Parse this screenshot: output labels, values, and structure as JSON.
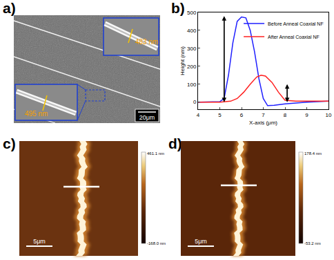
{
  "figure": {
    "a": {
      "label": "a)",
      "inset_top": "483 nm",
      "inset_bottom": "495 nm",
      "scale_bar": "20μm"
    },
    "b": {
      "label": "b)"
    },
    "c": {
      "label": "c)",
      "scale_bar": "5μm",
      "colorbar_max": "461.1 nm",
      "colorbar_min": "-168.0 nm"
    },
    "d": {
      "label": "d)",
      "scale_bar": "5μm",
      "colorbar_max": "178.4 nm",
      "colorbar_min": "-53.2 nm"
    }
  },
  "chart_data": {
    "type": "line",
    "x_label": "X-axis (μm)",
    "y_label": "Height (nm)",
    "xlim": [
      4,
      10
    ],
    "xticks": [
      4,
      5,
      6,
      7,
      8,
      9,
      10
    ],
    "ylim": [
      -40,
      500
    ],
    "yticks": [
      0,
      100,
      200,
      300,
      400,
      500
    ],
    "legend": "upper right",
    "series": [
      {
        "name": "Before Anneal Coaxial NF",
        "color": "#1f1fff",
        "x": [
          4,
          4.5,
          5,
          5.2,
          5.4,
          5.6,
          5.8,
          6.0,
          6.2,
          6.4,
          6.6,
          6.8,
          7.0,
          7.2,
          7.5,
          8,
          9,
          10
        ],
        "values": [
          0,
          0,
          2,
          20,
          150,
          330,
          450,
          475,
          470,
          400,
          280,
          130,
          20,
          -20,
          -18,
          -10,
          0,
          5
        ]
      },
      {
        "name": "After Anneal Coaxial NF",
        "color": "#ff2020",
        "x": [
          4,
          5,
          5.5,
          5.8,
          6.1,
          6.4,
          6.7,
          6.9,
          7.1,
          7.4,
          7.7,
          8.0,
          8.5,
          9,
          10
        ],
        "values": [
          0,
          0,
          5,
          20,
          55,
          100,
          140,
          150,
          145,
          110,
          55,
          10,
          5,
          5,
          5
        ]
      }
    ],
    "arrows": [
      {
        "x": 5.2,
        "y_from": 0,
        "y_to": 480
      },
      {
        "x": 8.1,
        "y_from": 0,
        "y_to": 100
      }
    ]
  }
}
